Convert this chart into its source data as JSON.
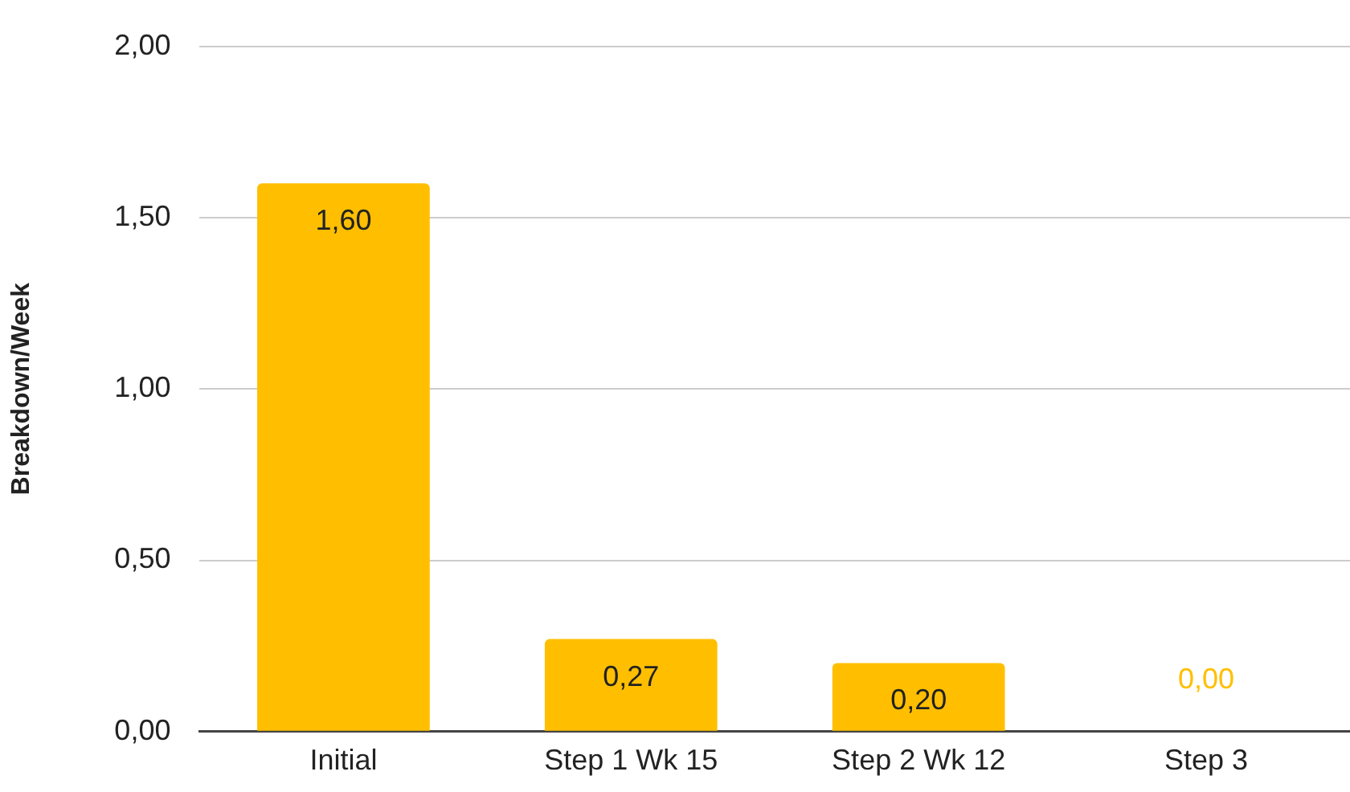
{
  "chart_data": {
    "type": "bar",
    "ylabel": "Breakdown/Week",
    "categories": [
      "Initial",
      "Step 1 Wk 15",
      "Step 2 Wk 12",
      "Step 3"
    ],
    "values": [
      1.6,
      0.27,
      0.2,
      0
    ],
    "value_labels": [
      "1,60",
      "0,27",
      "0,20",
      "0,00"
    ],
    "color": "#ffbf00",
    "ylim": [
      0,
      2
    ],
    "yticks": [
      {
        "value": 0,
        "label": "0,00"
      },
      {
        "value": 0.5,
        "label": "0,50"
      },
      {
        "value": 1,
        "label": "1,00"
      },
      {
        "value": 1.5,
        "label": "1,50"
      },
      {
        "value": 2,
        "label": "2,00"
      }
    ],
    "grid": "y",
    "legend": false
  }
}
